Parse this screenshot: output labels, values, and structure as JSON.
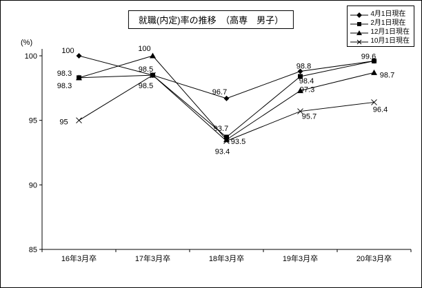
{
  "chart_data": {
    "type": "line",
    "title": "就職(内定)率の推移　（高専　男子）",
    "y_unit": "(%)",
    "xlabel": "",
    "ylabel": "",
    "ylim": [
      85,
      100
    ],
    "yticks": [
      100,
      95,
      90,
      85
    ],
    "grid": false,
    "legend_position": "top-right",
    "categories": [
      "16年3月卒",
      "17年3月卒",
      "18年3月卒",
      "19年3月卒",
      "20年3月卒"
    ],
    "series": [
      {
        "name": "4月1日現在",
        "marker": "diamond",
        "values": [
          100,
          98.5,
          96.7,
          98.8,
          99.6
        ],
        "labels": [
          "100",
          "98.5",
          "96.7",
          "98.8",
          "99.6"
        ]
      },
      {
        "name": "2月1日現在",
        "marker": "square",
        "values": [
          98.3,
          98.5,
          93.7,
          98.4,
          99.6
        ],
        "labels": [
          "98.3",
          "98.5",
          "93.7",
          "98.4",
          ""
        ]
      },
      {
        "name": "12月1日現在",
        "marker": "triangle",
        "values": [
          98.3,
          100,
          93.5,
          97.3,
          98.7
        ],
        "labels": [
          "98.3",
          "100",
          "93.5",
          "97.3",
          "98.7"
        ]
      },
      {
        "name": "10月1日現在",
        "marker": "x",
        "values": [
          95,
          98.5,
          93.4,
          95.7,
          96.4
        ],
        "labels": [
          "95",
          "",
          "93.4",
          "95.7",
          "96.4"
        ]
      }
    ]
  }
}
